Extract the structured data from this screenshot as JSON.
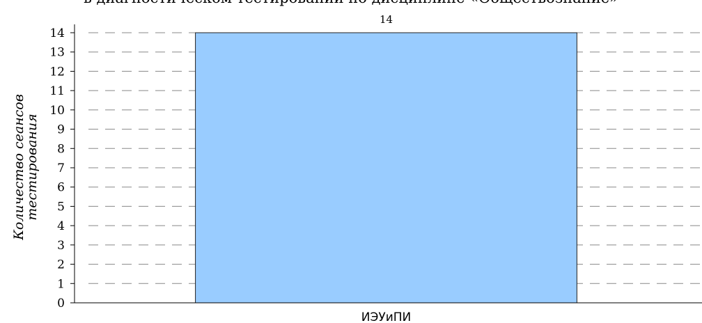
{
  "chart_data": {
    "type": "bar",
    "title": "в диагностическом тестировании по дисциплине «Обществознание»",
    "ylabel": [
      "Количество сеансов",
      "тестирования"
    ],
    "categories": [
      "ИЭУиПИ"
    ],
    "values": [
      14
    ],
    "color": "#99ccff",
    "ylim": [
      0,
      14
    ],
    "yticks": [
      0,
      1,
      2,
      3,
      4,
      5,
      6,
      7,
      8,
      9,
      10,
      11,
      12,
      13,
      14
    ],
    "grid": true
  }
}
